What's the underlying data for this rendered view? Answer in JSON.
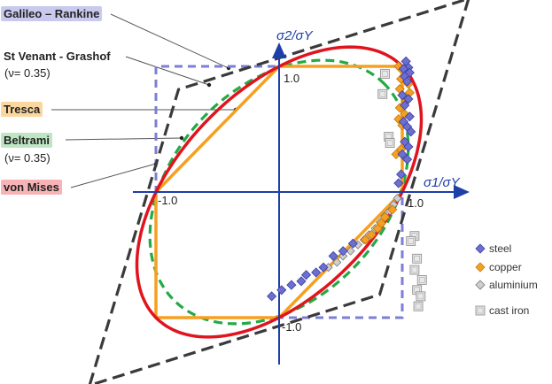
{
  "chart_data": {
    "type": "line",
    "title": "",
    "xlabel": "σ1/σY",
    "ylabel": "σ2/σY",
    "xlim": [
      -1.9,
      1.9
    ],
    "ylim": [
      -1.4,
      1.45
    ],
    "tick_labels": {
      "x_pos": "1.0",
      "x_neg": "-1.0",
      "y_pos": "1.0",
      "y_neg": "-1.0"
    },
    "criteria_labels": {
      "galileo": "Galileo – Rankine",
      "stvenant": "St Venant - Grashof",
      "stvenant_nu": "(ν= 0.35)",
      "tresca": "Tresca",
      "beltrami": "Beltrami",
      "beltrami_nu": "(ν= 0.35)",
      "vonmises": "von Mises"
    },
    "colors": {
      "galileo": "#7b7fd6",
      "stvenant": "#3a3a3a",
      "tresca": "#f5a020",
      "beltrami": "#22aa44",
      "vonmises": "#e0141e",
      "axis": "#1e3fa8",
      "steel": "#6b6fd0",
      "copper": "#f5a020",
      "aluminium": "#cfcfcf",
      "castiron": "#e8e8e8"
    },
    "series": [
      {
        "name": "Galileo – Rankine",
        "x": [
          -1,
          1,
          1,
          -1,
          -1
        ],
        "y": [
          -1,
          -1,
          1,
          1,
          -1
        ]
      },
      {
        "name": "St Venant - Grashof",
        "x": [
          1.5385,
          0.8163,
          -1.5385,
          -0.8163,
          1.5385
        ],
        "y": [
          1.5385,
          -0.8163,
          -1.5385,
          0.8163,
          1.5385
        ]
      },
      {
        "name": "Tresca",
        "x": [
          1,
          1,
          0,
          -1,
          -1,
          0,
          1
        ],
        "y": [
          0,
          1,
          1,
          0,
          -1,
          -1,
          0
        ]
      }
    ],
    "ellipses": [
      {
        "name": "von Mises",
        "semi_major_along_x_eq_y": 1.414,
        "semi_minor": 0.816
      },
      {
        "name": "Beltrami",
        "nu": 0.35,
        "semi_major_along_x_eq_y": 1.2127,
        "semi_minor": 0.8545
      }
    ],
    "legend": [
      {
        "name": "steel",
        "marker": "diamond"
      },
      {
        "name": "copper",
        "marker": "diamond"
      },
      {
        "name": "aluminium",
        "marker": "diamond"
      },
      {
        "name": "cast iron",
        "marker": "square"
      }
    ],
    "points": {
      "steel": [
        [
          1.03,
          1.04
        ],
        [
          1.05,
          0.99
        ],
        [
          1.01,
          0.98
        ],
        [
          1.06,
          0.95
        ],
        [
          1.02,
          0.92
        ],
        [
          1.04,
          0.88
        ],
        [
          1.0,
          0.77
        ],
        [
          1.05,
          0.74
        ],
        [
          1.02,
          0.69
        ],
        [
          1.06,
          0.6
        ],
        [
          1.01,
          0.56
        ],
        [
          1.04,
          0.52
        ],
        [
          1.07,
          0.48
        ],
        [
          1.02,
          0.4
        ],
        [
          1.05,
          0.36
        ],
        [
          1.0,
          0.3
        ],
        [
          1.04,
          0.26
        ],
        [
          0.97,
          0.07
        ],
        [
          0.6,
          -0.41
        ],
        [
          0.52,
          -0.47
        ],
        [
          0.44,
          -0.51
        ],
        [
          0.36,
          -0.6
        ],
        [
          0.3,
          -0.64
        ],
        [
          0.22,
          -0.66
        ],
        [
          0.18,
          -0.71
        ],
        [
          0.1,
          -0.74
        ],
        [
          0.02,
          -0.78
        ],
        [
          -0.06,
          -0.83
        ],
        [
          0.99,
          0.14
        ]
      ],
      "copper": [
        [
          0.97,
          1.0
        ],
        [
          1.0,
          0.97
        ],
        [
          1.03,
          0.93
        ],
        [
          0.99,
          0.9
        ],
        [
          1.05,
          0.86
        ],
        [
          0.98,
          0.82
        ],
        [
          1.06,
          0.79
        ],
        [
          1.03,
          0.72
        ],
        [
          0.98,
          0.67
        ],
        [
          1.02,
          0.62
        ],
        [
          0.97,
          0.58
        ],
        [
          1.0,
          0.53
        ],
        [
          0.99,
          0.34
        ],
        [
          0.95,
          0.3
        ],
        [
          0.92,
          -0.14
        ],
        [
          0.86,
          -0.2
        ],
        [
          0.83,
          -0.25
        ],
        [
          0.8,
          -0.29
        ],
        [
          0.75,
          -0.34
        ],
        [
          0.7,
          -0.38
        ]
      ],
      "aluminium": [
        [
          0.96,
          -0.05
        ],
        [
          0.93,
          -0.1
        ],
        [
          0.9,
          -0.15
        ],
        [
          0.86,
          -0.19
        ],
        [
          0.82,
          -0.24
        ],
        [
          0.78,
          -0.29
        ],
        [
          0.73,
          -0.34
        ],
        [
          0.69,
          -0.38
        ],
        [
          0.64,
          -0.42
        ],
        [
          0.58,
          -0.47
        ],
        [
          0.52,
          -0.51
        ],
        [
          0.47,
          -0.56
        ],
        [
          0.4,
          -0.6
        ]
      ],
      "castiron": [
        [
          0.86,
          0.94
        ],
        [
          0.84,
          0.78
        ],
        [
          0.89,
          0.44
        ],
        [
          0.9,
          0.39
        ],
        [
          1.1,
          -0.35
        ],
        [
          1.07,
          -0.39
        ],
        [
          1.12,
          -0.53
        ],
        [
          1.1,
          -0.62
        ],
        [
          1.16,
          -0.7
        ],
        [
          1.12,
          -0.78
        ],
        [
          1.15,
          -0.83
        ],
        [
          1.13,
          -0.91
        ]
      ]
    }
  }
}
